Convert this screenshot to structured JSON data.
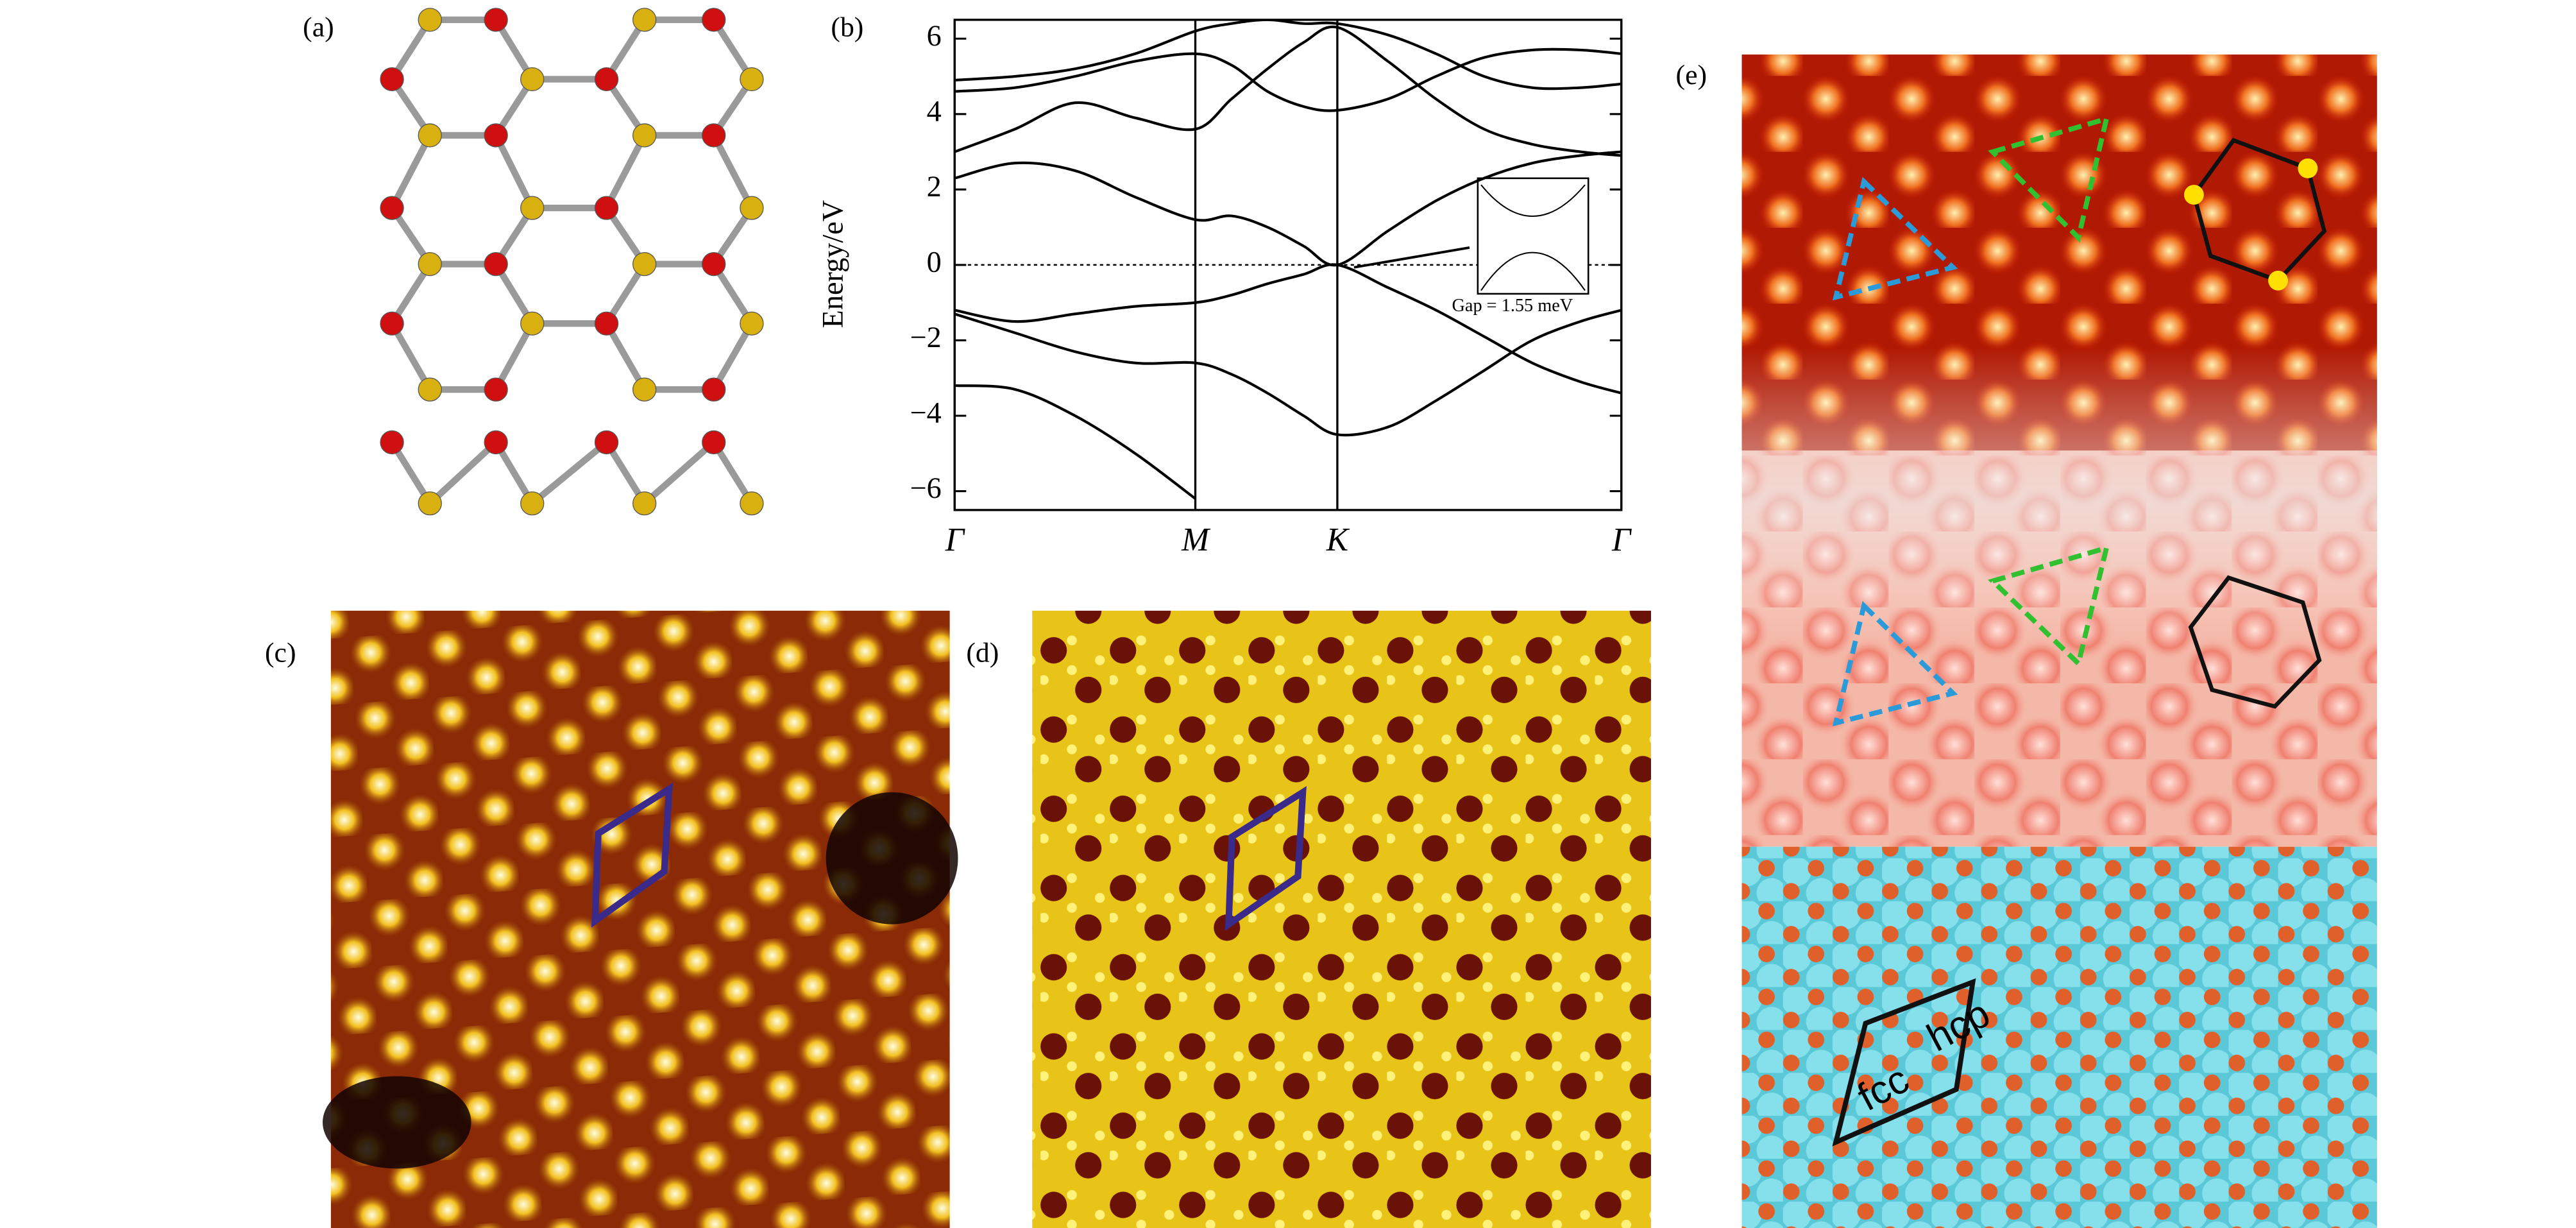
{
  "panels": {
    "a": "(a)",
    "b": "(b)",
    "c": "(c)",
    "d": "(d)",
    "e": "(e)"
  },
  "chart_data": {
    "type": "line",
    "ylabel": "Energy/eV",
    "x": [
      0,
      0.25,
      0.5,
      0.75,
      1,
      1.15,
      1.3,
      1.45,
      1.59,
      1.8,
      2.0,
      2.2,
      2.4,
      2.6,
      2.77
    ],
    "series": [
      {
        "color": "#000000",
        "values": [
          2.3,
          2.7,
          2.5,
          1.8,
          1.2,
          1.3,
          1.0,
          0.5,
          0,
          0.9,
          1.7,
          2.3,
          2.7,
          2.9,
          3.0
        ]
      },
      {
        "color": "#000000",
        "values": [
          -1.2,
          -1.5,
          -1.3,
          -1.1,
          -1.0,
          -0.8,
          -0.5,
          -0.25,
          0,
          -0.6,
          -1.2,
          -1.9,
          -2.6,
          -3.1,
          -3.4
        ]
      },
      {
        "color": "#000000",
        "values": [
          -1.3,
          -1.8,
          -2.3,
          -2.6,
          -2.6,
          -2.9,
          -3.4,
          -4.0,
          -4.5,
          -4.3,
          -3.6,
          -2.8,
          -2.0,
          -1.5,
          -1.2
        ]
      },
      {
        "color": "#000000",
        "values": [
          -3.2,
          -3.3,
          -4.0,
          -5.0,
          -6.2,
          null,
          null,
          null,
          null,
          null,
          null,
          null,
          null,
          null,
          null
        ]
      },
      {
        "color": "#000000",
        "values": [
          4.6,
          4.7,
          5.0,
          5.4,
          5.6,
          5.3,
          4.6,
          4.2,
          4.1,
          4.4,
          5.0,
          5.5,
          5.7,
          5.7,
          5.6
        ]
      },
      {
        "color": "#000000",
        "values": [
          3.0,
          3.6,
          4.3,
          3.9,
          3.6,
          4.4,
          5.2,
          5.9,
          6.3,
          5.4,
          4.4,
          3.6,
          3.2,
          3.0,
          2.9
        ]
      },
      {
        "color": "#000000",
        "values": [
          4.9,
          5.0,
          5.2,
          5.6,
          6.2,
          6.4,
          6.5,
          6.4,
          6.4,
          6.1,
          5.6,
          5.0,
          4.7,
          4.7,
          4.8
        ]
      }
    ],
    "xlim": [
      0,
      2.77
    ],
    "xticks": [
      {
        "value": 0,
        "label": "Γ"
      },
      {
        "value": 1,
        "label": "M"
      },
      {
        "value": 1.59,
        "label": "K"
      },
      {
        "value": 2.77,
        "label": "Γ"
      }
    ],
    "ylim": [
      -6.5,
      6.5
    ],
    "yticks": [
      6,
      4,
      2,
      0,
      {
        "value": -2,
        "label": "−2"
      },
      {
        "value": -4,
        "label": "−4"
      },
      {
        "value": -6,
        "label": "−6"
      }
    ],
    "inset_text": "Gap = 1.55 meV"
  },
  "panel_e": {
    "hcp": "hcp",
    "fcc": "fcc"
  }
}
